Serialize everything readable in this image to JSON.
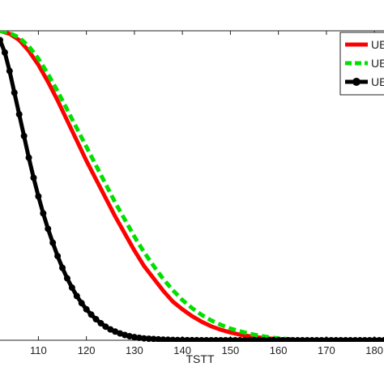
{
  "chart_data": {
    "type": "line",
    "title": "",
    "xlabel": "TSTT",
    "ylabel": "",
    "xlim": [
      102,
      182
    ],
    "ylim": [
      0,
      1
    ],
    "x_ticks": [
      "110",
      "120",
      "130",
      "140",
      "150",
      "160",
      "170",
      "180"
    ],
    "grid": false,
    "legend_position": "top-right",
    "series": [
      {
        "name": "UE",
        "color": "#ff0000",
        "style": "solid",
        "x": [
          102,
          104,
          106,
          108,
          110,
          112,
          114,
          116,
          118,
          120,
          122,
          124,
          126,
          128,
          130,
          132,
          134,
          136,
          138,
          140,
          142,
          144,
          146,
          148,
          150,
          152,
          154,
          156,
          158,
          160,
          162,
          164,
          166,
          168,
          170,
          172,
          174,
          176,
          178,
          180,
          182
        ],
        "y": [
          1.0,
          0.99,
          0.97,
          0.935,
          0.89,
          0.835,
          0.775,
          0.71,
          0.645,
          0.58,
          0.52,
          0.46,
          0.4,
          0.345,
          0.29,
          0.24,
          0.2,
          0.16,
          0.125,
          0.1,
          0.078,
          0.06,
          0.045,
          0.034,
          0.025,
          0.018,
          0.013,
          0.009,
          0.006,
          0.004,
          0.002,
          0.001,
          0.0,
          0.0,
          0.0,
          0.0,
          0.0,
          0.0,
          0.0,
          0.0,
          0.0
        ]
      },
      {
        "name": "UE",
        "color": "#00e000",
        "style": "dashed",
        "x": [
          102,
          104,
          106,
          108,
          110,
          112,
          114,
          116,
          118,
          120,
          122,
          124,
          126,
          128,
          130,
          132,
          134,
          136,
          138,
          140,
          142,
          144,
          146,
          148,
          150,
          152,
          154,
          156,
          158,
          160,
          162,
          164,
          166,
          168,
          170,
          172,
          174,
          176,
          178,
          180,
          182
        ],
        "y": [
          1.0,
          0.993,
          0.978,
          0.95,
          0.91,
          0.86,
          0.805,
          0.745,
          0.685,
          0.625,
          0.565,
          0.505,
          0.445,
          0.39,
          0.335,
          0.285,
          0.24,
          0.198,
          0.162,
          0.13,
          0.104,
          0.082,
          0.064,
          0.05,
          0.038,
          0.029,
          0.021,
          0.015,
          0.01,
          0.006,
          0.004,
          0.002,
          0.001,
          0.0,
          0.0,
          0.0,
          0.0,
          0.0,
          0.0,
          0.0,
          0.0
        ]
      },
      {
        "name": "UE",
        "color": "#000000",
        "style": "solid-markers",
        "x": [
          102,
          103,
          104,
          105,
          106,
          107,
          108,
          109,
          110,
          111,
          112,
          113,
          114,
          115,
          116,
          117,
          118,
          119,
          120,
          121,
          122,
          123,
          124,
          125,
          126,
          127,
          128,
          129,
          130,
          131,
          132,
          133,
          134,
          135,
          136,
          137,
          138,
          139,
          140,
          141,
          142,
          143,
          144,
          145,
          146,
          147,
          148,
          149,
          150,
          151,
          152,
          153,
          154,
          155,
          156,
          157,
          158,
          159,
          160,
          161,
          162,
          163,
          164,
          165,
          166,
          167,
          168,
          169,
          170,
          171,
          172,
          173,
          174,
          175,
          176,
          177,
          178,
          179,
          180,
          181,
          182
        ],
        "y": [
          0.97,
          0.93,
          0.87,
          0.8,
          0.73,
          0.66,
          0.59,
          0.525,
          0.465,
          0.41,
          0.36,
          0.315,
          0.272,
          0.234,
          0.2,
          0.17,
          0.143,
          0.12,
          0.1,
          0.083,
          0.068,
          0.055,
          0.044,
          0.035,
          0.028,
          0.022,
          0.017,
          0.013,
          0.01,
          0.008,
          0.006,
          0.005,
          0.004,
          0.003,
          0.002,
          0.0015,
          0.001,
          0.0008,
          0.0006,
          0.0004,
          0.0003,
          0.0002,
          0.0001,
          0.0,
          0.0,
          0.0,
          0.0,
          0.0,
          0.0,
          0.0,
          0.0,
          0.0,
          0.0,
          0.0,
          0.0,
          0.0,
          0.0,
          0.0,
          0.0,
          0.0,
          0.0,
          0.0,
          0.0,
          0.0,
          0.0,
          0.0,
          0.0,
          0.0,
          0.0,
          0.0,
          0.0,
          0.0,
          0.0,
          0.0,
          0.0,
          0.0,
          0.0,
          0.0,
          0.0,
          0.0,
          0.0
        ]
      }
    ]
  }
}
